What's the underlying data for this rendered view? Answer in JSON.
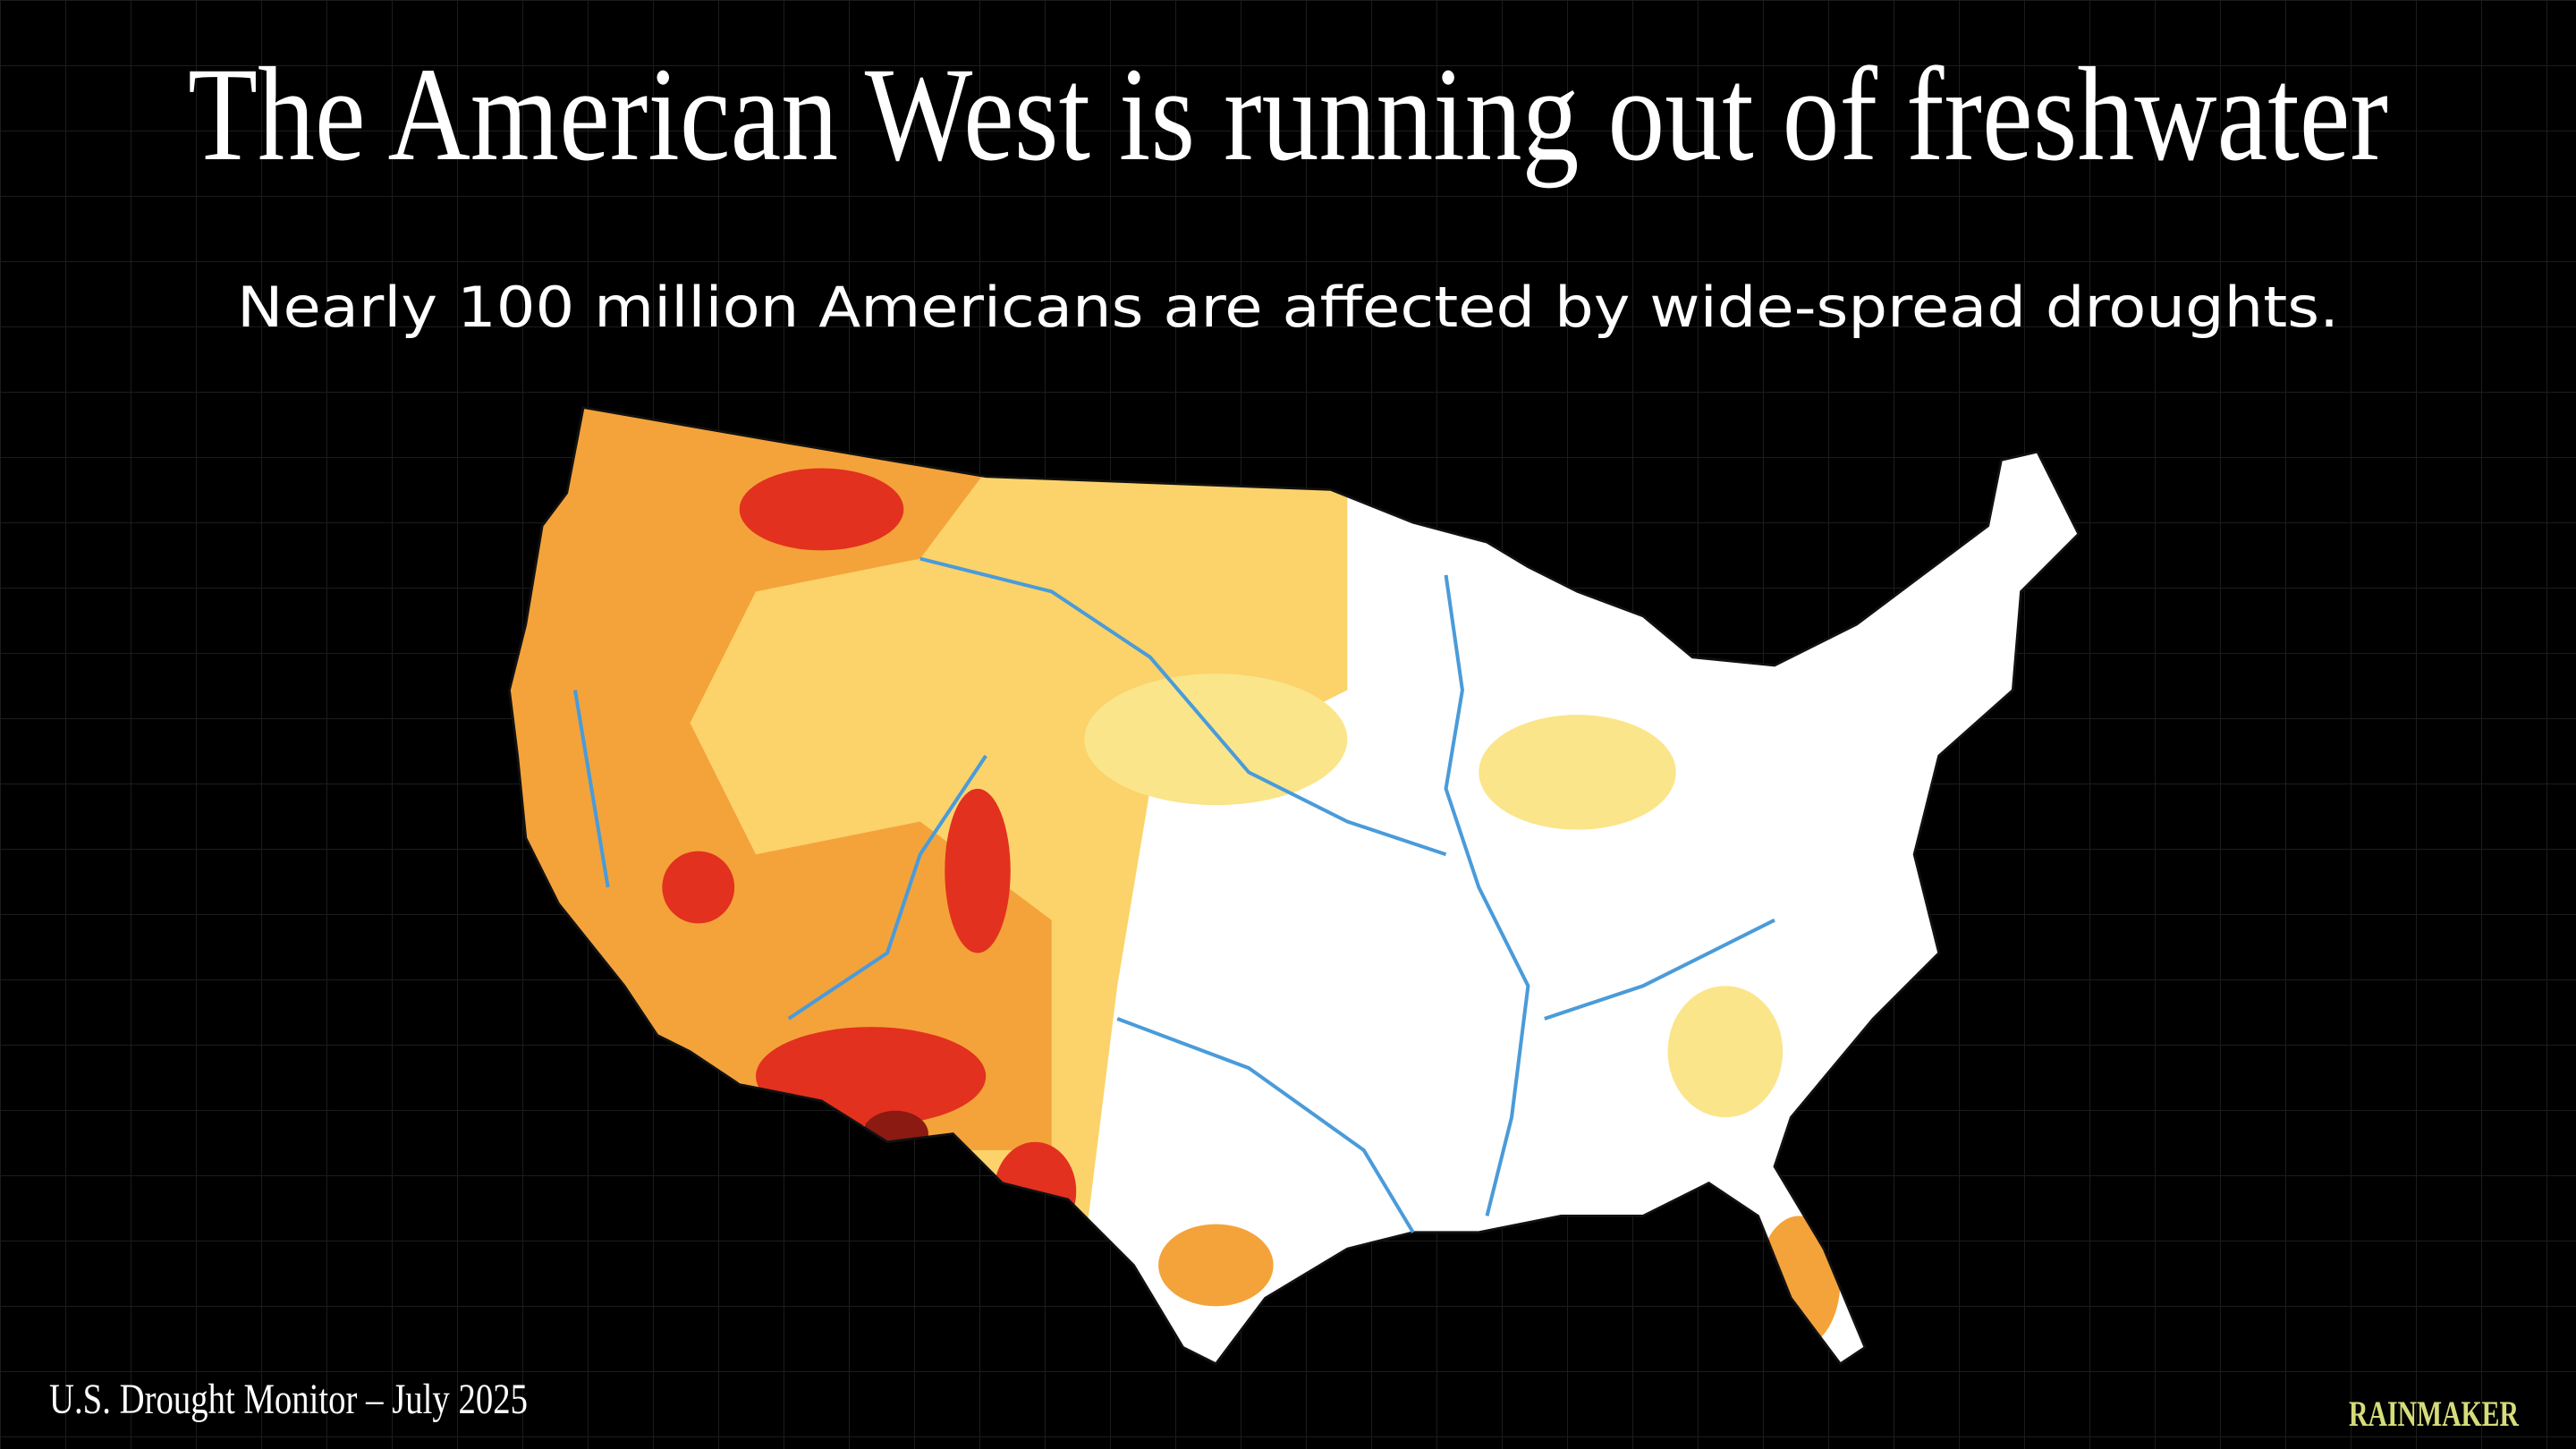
{
  "header": {
    "title": "The American West is running out of freshwater",
    "subtitle": "Nearly 100 million Americans are affected by wide-spread droughts."
  },
  "footer": {
    "source": "U.S. Drought Monitor – July 2025",
    "brand": "RAINMAKER"
  }
}
